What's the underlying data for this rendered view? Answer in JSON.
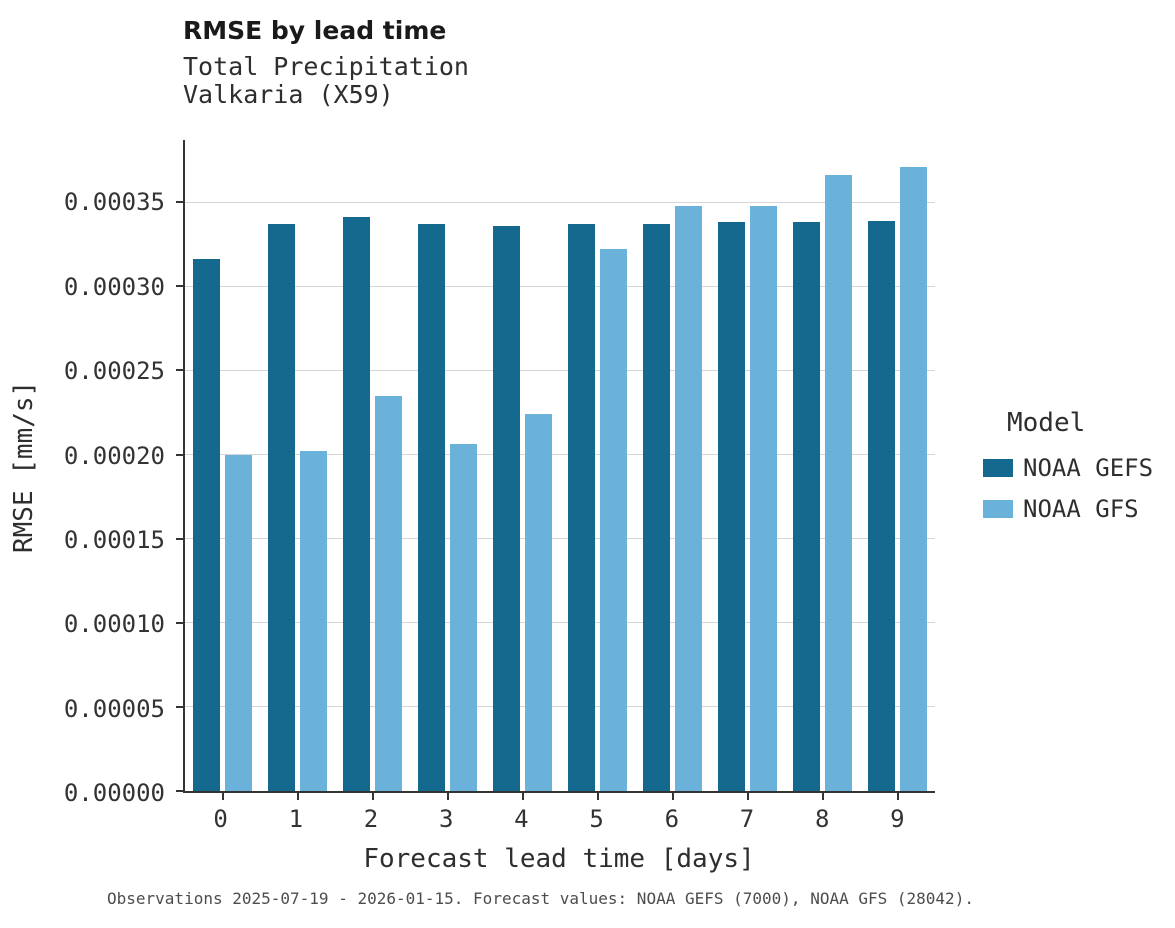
{
  "chart_data": {
    "type": "bar",
    "title": "RMSE by lead time",
    "subtitle_lines": [
      "Total Precipitation",
      "Valkaria (X59)"
    ],
    "xlabel": "Forecast lead time [days]",
    "ylabel": "RMSE [mm/s]",
    "categories": [
      "0",
      "1",
      "2",
      "3",
      "4",
      "5",
      "6",
      "7",
      "8",
      "9"
    ],
    "series": [
      {
        "name": "NOAA GEFS",
        "color": "#15688e",
        "values": [
          0.000316,
          0.000337,
          0.000341,
          0.000337,
          0.000336,
          0.000337,
          0.000337,
          0.000338,
          0.000338,
          0.000339
        ]
      },
      {
        "name": "NOAA GFS",
        "color": "#6bb2da",
        "values": [
          0.0002,
          0.000202,
          0.000235,
          0.000206,
          0.000224,
          0.000322,
          0.000348,
          0.000348,
          0.000366,
          0.000371
        ]
      }
    ],
    "ylim": [
      0,
      0.000387
    ],
    "yticks": [
      0.0,
      5e-05,
      0.0001,
      0.00015,
      0.0002,
      0.00025,
      0.0003,
      0.00035
    ],
    "ytick_labels": [
      "0.00000",
      "0.00005",
      "0.00010",
      "0.00015",
      "0.00020",
      "0.00025",
      "0.00030",
      "0.00035"
    ],
    "grid": "horizontal",
    "legend": {
      "title": "Model",
      "position": "right"
    },
    "caption": "Observations 2025-07-19 - 2026-01-15. Forecast values: NOAA GEFS (7000), NOAA GFS (28042)."
  }
}
